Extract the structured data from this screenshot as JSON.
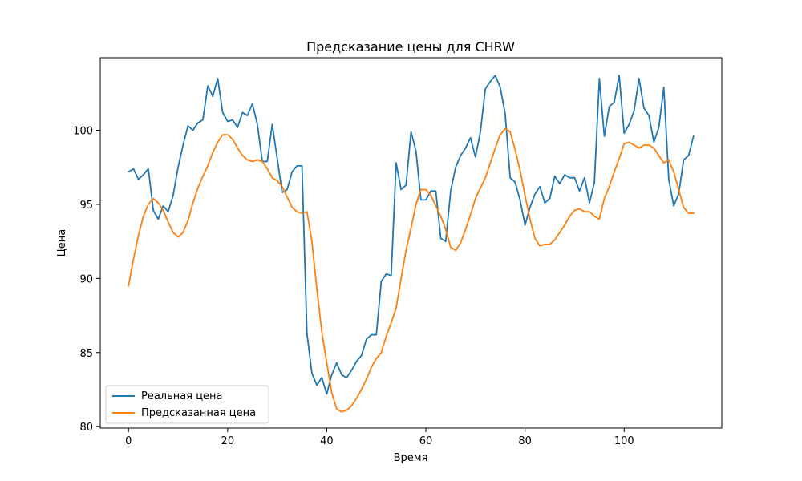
{
  "chart_data": {
    "type": "line",
    "title": "Предсказание цены для CHRW",
    "xlabel": "Время",
    "ylabel": "Цена",
    "xlim": [
      -5.7,
      119.7
    ],
    "ylim": [
      79.9,
      104.9
    ],
    "xticks": [
      0,
      20,
      40,
      60,
      80,
      100
    ],
    "yticks": [
      80,
      85,
      90,
      95,
      100
    ],
    "grid": false,
    "legend_position": "lower-left",
    "series": [
      {
        "name": "Реальная цена",
        "color": "#1f77b4",
        "x": [
          0,
          1,
          2,
          3,
          4,
          5,
          6,
          7,
          8,
          9,
          10,
          11,
          12,
          13,
          14,
          15,
          16,
          17,
          18,
          19,
          20,
          21,
          22,
          23,
          24,
          25,
          26,
          27,
          28,
          29,
          30,
          31,
          32,
          33,
          34,
          35,
          36,
          37,
          38,
          39,
          40,
          41,
          42,
          43,
          44,
          45,
          46,
          47,
          48,
          49,
          50,
          51,
          52,
          53,
          54,
          55,
          56,
          57,
          58,
          59,
          60,
          61,
          62,
          63,
          64,
          65,
          66,
          67,
          68,
          69,
          70,
          71,
          72,
          73,
          74,
          75,
          76,
          77,
          78,
          79,
          80,
          81,
          82,
          83,
          84,
          85,
          86,
          87,
          88,
          89,
          90,
          91,
          92,
          93,
          94,
          95,
          96,
          97,
          98,
          99,
          100,
          101,
          102,
          103,
          104,
          105,
          106,
          107,
          108,
          109,
          110,
          111,
          112,
          113,
          114
        ],
        "values": [
          97.2,
          97.4,
          96.7,
          97.0,
          97.4,
          94.6,
          94.0,
          94.9,
          94.5,
          95.6,
          97.5,
          99.0,
          100.3,
          100.0,
          100.5,
          100.7,
          103.0,
          102.3,
          103.5,
          101.2,
          100.6,
          100.7,
          100.2,
          101.2,
          101.0,
          101.8,
          100.4,
          97.9,
          97.9,
          100.4,
          98.1,
          95.8,
          96.0,
          97.2,
          97.6,
          97.6,
          86.3,
          83.6,
          82.8,
          83.3,
          82.2,
          83.5,
          84.3,
          83.5,
          83.3,
          83.8,
          84.4,
          84.8,
          85.9,
          86.2,
          86.2,
          89.8,
          90.3,
          90.2,
          97.8,
          96.0,
          96.3,
          99.9,
          98.6,
          95.3,
          95.3,
          95.9,
          95.9,
          92.7,
          92.5,
          95.9,
          97.5,
          98.3,
          98.8,
          99.5,
          98.2,
          99.9,
          102.8,
          103.3,
          103.7,
          102.9,
          101.1,
          96.8,
          96.5,
          95.3,
          93.6,
          94.8,
          95.7,
          96.2,
          95.1,
          95.4,
          96.9,
          96.4,
          97.0,
          96.8,
          96.8,
          95.9,
          96.8,
          95.1,
          96.5,
          103.5,
          99.6,
          101.6,
          101.9,
          103.7,
          99.8,
          100.4,
          101.3,
          103.5,
          101.5,
          101.0,
          99.2,
          100.2,
          102.9,
          96.7,
          94.9,
          95.7,
          98.0,
          98.3,
          99.6
        ]
      },
      {
        "name": "Предсказанная цена",
        "color": "#ff7f0e",
        "x": [
          0,
          1,
          2,
          3,
          4,
          5,
          6,
          7,
          8,
          9,
          10,
          11,
          12,
          13,
          14,
          15,
          16,
          17,
          18,
          19,
          20,
          21,
          22,
          23,
          24,
          25,
          26,
          27,
          28,
          29,
          30,
          31,
          32,
          33,
          34,
          35,
          36,
          37,
          38,
          39,
          40,
          41,
          42,
          43,
          44,
          45,
          46,
          47,
          48,
          49,
          50,
          51,
          52,
          53,
          54,
          55,
          56,
          57,
          58,
          59,
          60,
          61,
          62,
          63,
          64,
          65,
          66,
          67,
          68,
          69,
          70,
          71,
          72,
          73,
          74,
          75,
          76,
          77,
          78,
          79,
          80,
          81,
          82,
          83,
          84,
          85,
          86,
          87,
          88,
          89,
          90,
          91,
          92,
          93,
          94,
          95,
          96,
          97,
          98,
          99,
          100,
          101,
          102,
          103,
          104,
          105,
          106,
          107,
          108,
          109,
          110,
          111,
          112,
          113,
          114
        ],
        "values": [
          89.5,
          91.3,
          92.9,
          94.2,
          95.0,
          95.4,
          95.1,
          94.6,
          93.8,
          93.1,
          92.8,
          93.1,
          93.9,
          95.1,
          96.1,
          96.9,
          97.6,
          98.5,
          99.2,
          99.7,
          99.7,
          99.4,
          98.8,
          98.3,
          98.0,
          97.9,
          98.0,
          97.9,
          97.4,
          96.8,
          96.6,
          96.2,
          95.5,
          94.8,
          94.5,
          94.4,
          94.5,
          92.5,
          89.3,
          86.4,
          84.3,
          82.3,
          81.2,
          81.0,
          81.1,
          81.4,
          81.9,
          82.5,
          83.2,
          84.0,
          84.6,
          85.0,
          86.1,
          87.0,
          88.0,
          90.0,
          91.9,
          93.4,
          95.0,
          96.0,
          96.0,
          95.6,
          94.9,
          94.2,
          93.3,
          92.1,
          91.9,
          92.4,
          93.3,
          94.3,
          95.4,
          96.1,
          96.8,
          97.8,
          98.8,
          99.7,
          100.1,
          99.9,
          98.7,
          97.3,
          95.6,
          94.0,
          92.7,
          92.2,
          92.3,
          92.3,
          92.6,
          93.1,
          93.6,
          94.2,
          94.6,
          94.7,
          94.5,
          94.5,
          94.2,
          94.0,
          95.4,
          96.2,
          97.2,
          98.1,
          99.1,
          99.2,
          99.0,
          98.8,
          99.0,
          99.0,
          98.8,
          98.3,
          97.8,
          98.0,
          97.2,
          96.0,
          94.8,
          94.4,
          94.4
        ]
      }
    ]
  }
}
